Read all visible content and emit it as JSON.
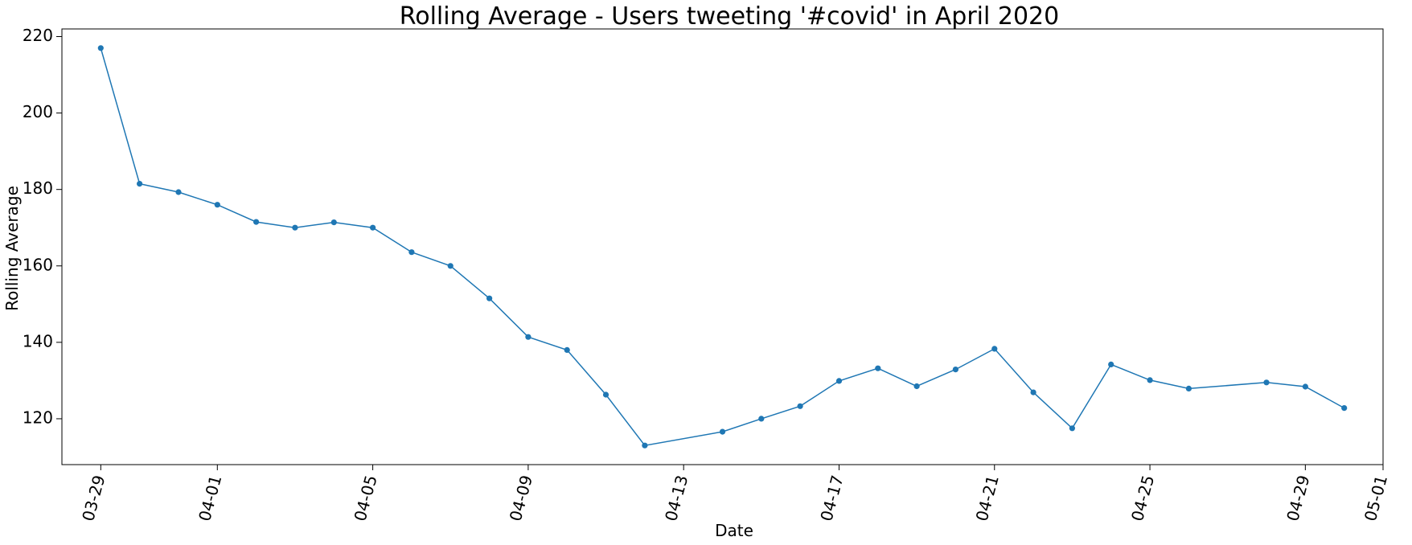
{
  "chart_data": {
    "type": "line",
    "title": "Rolling Average - Users tweeting '#covid' in April 2020",
    "xlabel": "Date",
    "ylabel": "Rolling Average",
    "x_axis_type": "date",
    "xlim": [
      "2020-03-28",
      "2020-05-01"
    ],
    "ylim": [
      108,
      222
    ],
    "x_ticks": [
      "2020-03-29",
      "2020-04-01",
      "2020-04-05",
      "2020-04-09",
      "2020-04-13",
      "2020-04-17",
      "2020-04-21",
      "2020-04-25",
      "2020-04-29",
      "2020-05-01"
    ],
    "x_tick_labels": [
      "03-29",
      "04-01",
      "04-05",
      "04-09",
      "04-13",
      "04-17",
      "04-21",
      "04-25",
      "04-29",
      "05-01"
    ],
    "y_ticks": [
      120,
      140,
      160,
      180,
      200,
      220
    ],
    "y_tick_labels": [
      "120",
      "140",
      "160",
      "180",
      "200",
      "220"
    ],
    "grid": false,
    "color": "#1f77b4",
    "series": [
      {
        "x": [
          "2020-03-29",
          "2020-03-30",
          "2020-03-31",
          "2020-04-01",
          "2020-04-02",
          "2020-04-03",
          "2020-04-04",
          "2020-04-05",
          "2020-04-06",
          "2020-04-07",
          "2020-04-08",
          "2020-04-09",
          "2020-04-10",
          "2020-04-11",
          "2020-04-12",
          "2020-04-14",
          "2020-04-15",
          "2020-04-16",
          "2020-04-17",
          "2020-04-18",
          "2020-04-19",
          "2020-04-20",
          "2020-04-21",
          "2020-04-22",
          "2020-04-23",
          "2020-04-24",
          "2020-04-25",
          "2020-04-26",
          "2020-04-28",
          "2020-04-29",
          "2020-04-30"
        ],
        "values": [
          217,
          181.5,
          179.3,
          176,
          171.5,
          170,
          171.4,
          170,
          163.6,
          160,
          151.5,
          141.4,
          138,
          126.3,
          113,
          116.6,
          120,
          123.3,
          129.9,
          133.2,
          128.5,
          132.9,
          138.3,
          126.9,
          117.5,
          134.2,
          130.1,
          127.9,
          129.5,
          128.4,
          122.8
        ]
      }
    ]
  }
}
